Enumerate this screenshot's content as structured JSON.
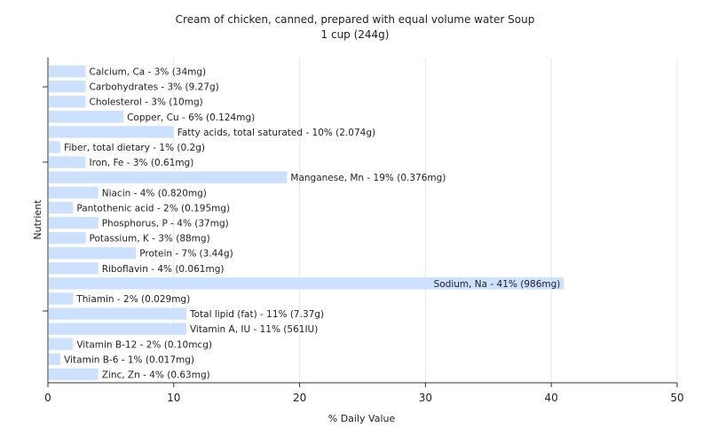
{
  "chart_data": {
    "type": "bar",
    "orientation": "horizontal",
    "title": "Cream of chicken, canned, prepared with equal volume water Soup",
    "subtitle": "1 cup (244g)",
    "xlabel": "% Daily Value",
    "ylabel": "Nutrient",
    "xlim": [
      0,
      50
    ],
    "xticks": [
      0,
      10,
      20,
      30,
      40,
      50
    ],
    "grid": true,
    "bar_color": "#cce0ff",
    "categories": [
      "Calcium, Ca",
      "Carbohydrates",
      "Cholesterol",
      "Copper, Cu",
      "Fatty acids, total saturated",
      "Fiber, total dietary",
      "Iron, Fe",
      "Manganese, Mn",
      "Niacin",
      "Pantothenic acid",
      "Phosphorus, P",
      "Potassium, K",
      "Protein",
      "Riboflavin",
      "Sodium, Na",
      "Thiamin",
      "Total lipid (fat)",
      "Vitamin A, IU",
      "Vitamin B-12",
      "Vitamin B-6",
      "Zinc, Zn"
    ],
    "values": [
      3,
      3,
      3,
      6,
      10,
      1,
      3,
      19,
      4,
      2,
      4,
      3,
      7,
      4,
      41,
      2,
      11,
      11,
      2,
      1,
      4
    ],
    "labels": [
      "Calcium, Ca - 3% (34mg)",
      "Carbohydrates - 3% (9.27g)",
      "Cholesterol - 3% (10mg)",
      "Copper, Cu - 6% (0.124mg)",
      "Fatty acids, total saturated - 10% (2.074g)",
      "Fiber, total dietary - 1% (0.2g)",
      "Iron, Fe - 3% (0.61mg)",
      "Manganese, Mn - 19% (0.376mg)",
      "Niacin - 4% (0.820mg)",
      "Pantothenic acid - 2% (0.195mg)",
      "Phosphorus, P - 4% (37mg)",
      "Potassium, K - 3% (88mg)",
      "Protein - 7% (3.44g)",
      "Riboflavin - 4% (0.061mg)",
      "Sodium, Na - 41% (986mg)",
      "Thiamin - 2% (0.029mg)",
      "Total lipid (fat) - 11% (7.37g)",
      "Vitamin A, IU - 11% (561IU)",
      "Vitamin B-12 - 2% (0.10mcg)",
      "Vitamin B-6 - 1% (0.017mg)",
      "Zinc, Zn - 4% (0.63mg)"
    ]
  }
}
